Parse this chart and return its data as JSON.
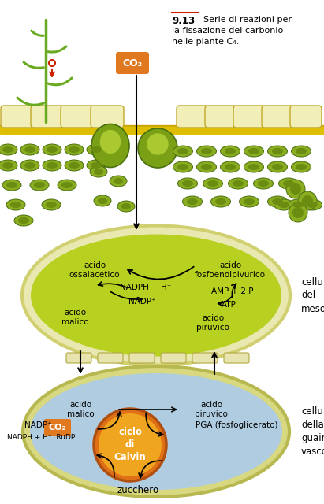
{
  "bg_color": "#ffffff",
  "title": "9.13",
  "subtitle_line1": "Serie di reazioni per",
  "subtitle_line2": "la fissazione del carbonio",
  "subtitle_line3": "nelle piante C₄.",
  "co2_label": "CO₂",
  "co2_color": "#e07820",
  "mesofilo_fill": "#b8d020",
  "mesofilo_border": "#e0e080",
  "guaina_fill": "#b0cce0",
  "guaina_border": "#c8c880",
  "calvin_outer": "#d06010",
  "calvin_inner": "#f0a020",
  "cell_mesofilo": "cellula\ndel\nmesofilo",
  "cell_guaina": "cellula\ndella\nguaina\nvascolare",
  "lbl_ossalacetico": "acido\nossalacetico",
  "lbl_fosfoenol": "acido\nfosfoenolpivurico",
  "lbl_nadph": "NADPH + H⁺",
  "lbl_nadp": "NADP⁺",
  "lbl_amp2p": "AMP + 2 P",
  "lbl_atp": "ATP",
  "lbl_malico_top": "acido\nmalico",
  "lbl_piruvico_top": "acido\npiruvico",
  "lbl_malico_bot": "acido\nmalico",
  "lbl_piruvico_bot": "acido\npiruvico",
  "lbl_nadp_bot": "NADP⁺",
  "lbl_nadph_rudp": "NADPH + H⁺  RuDP",
  "lbl_co2_bot": "CO₂",
  "lbl_pga": "PGA (fosfoglicerato)",
  "lbl_calvin": "ciclo\ndi\nCalvin",
  "lbl_zucchero": "zucchero",
  "chloro_fill": "#8aac20",
  "chloro_inner": "#6a8c10",
  "epidermis_fill": "#f0ee98",
  "epidermis_border": "#c8b830",
  "yellow_band": "#d4c020",
  "cell_wall": "#e8e4a0",
  "leaf_green": "#6aaa20",
  "guard_fill": "#7aa015",
  "stoma_fill": "#aac830"
}
